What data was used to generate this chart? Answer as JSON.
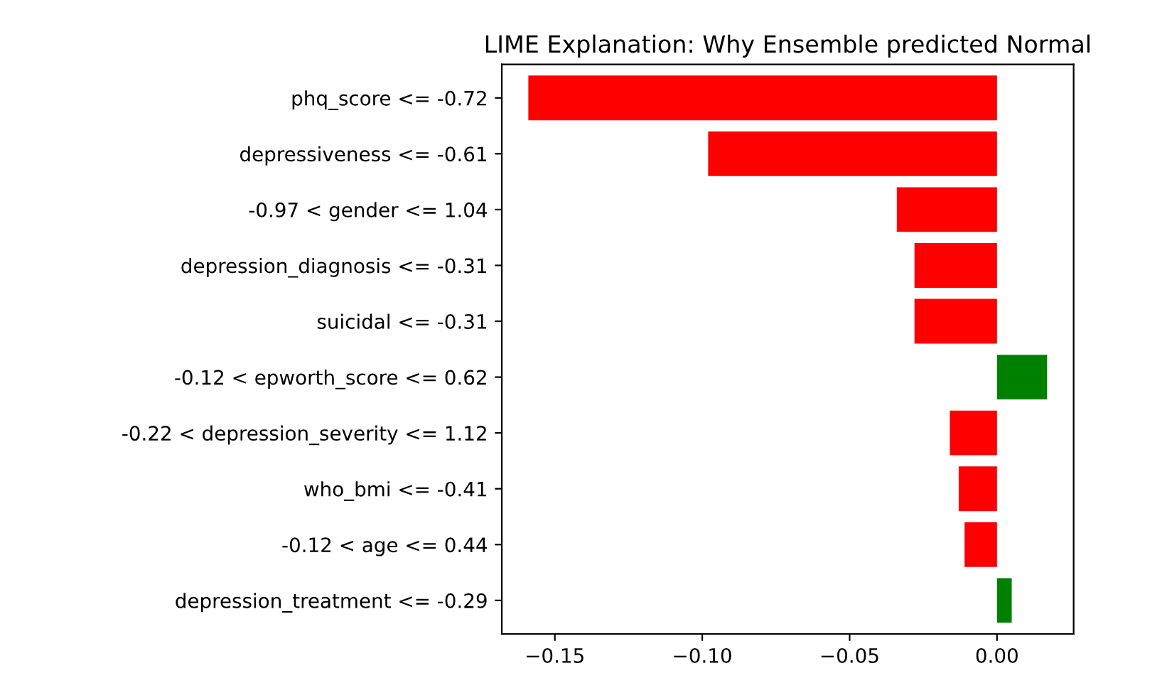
{
  "chart_data": {
    "type": "bar",
    "orientation": "horizontal",
    "title": "LIME Explanation: Why Ensemble predicted Normal",
    "categories": [
      "phq_score <= -0.72",
      "depressiveness <= -0.61",
      "-0.97 < gender <= 1.04",
      "depression_diagnosis <= -0.31",
      "suicidal <= -0.31",
      "-0.12 < epworth_score <= 0.62",
      "-0.22 < depression_severity <= 1.12",
      "who_bmi <= -0.41",
      "-0.12 < age <= 0.44",
      "depression_treatment <= -0.29"
    ],
    "values": [
      -0.159,
      -0.098,
      -0.034,
      -0.028,
      -0.028,
      0.017,
      -0.016,
      -0.013,
      -0.011,
      0.005
    ],
    "colors": [
      "#ff0000",
      "#ff0000",
      "#ff0000",
      "#ff0000",
      "#ff0000",
      "#008000",
      "#ff0000",
      "#ff0000",
      "#ff0000",
      "#008000"
    ],
    "xlim": [
      -0.168,
      0.026
    ],
    "xticks": [
      {
        "value": -0.15,
        "label": "−0.15"
      },
      {
        "value": -0.1,
        "label": "−0.10"
      },
      {
        "value": -0.05,
        "label": "−0.05"
      },
      {
        "value": 0,
        "label": "0.00"
      }
    ],
    "grid": false,
    "legend": false
  }
}
